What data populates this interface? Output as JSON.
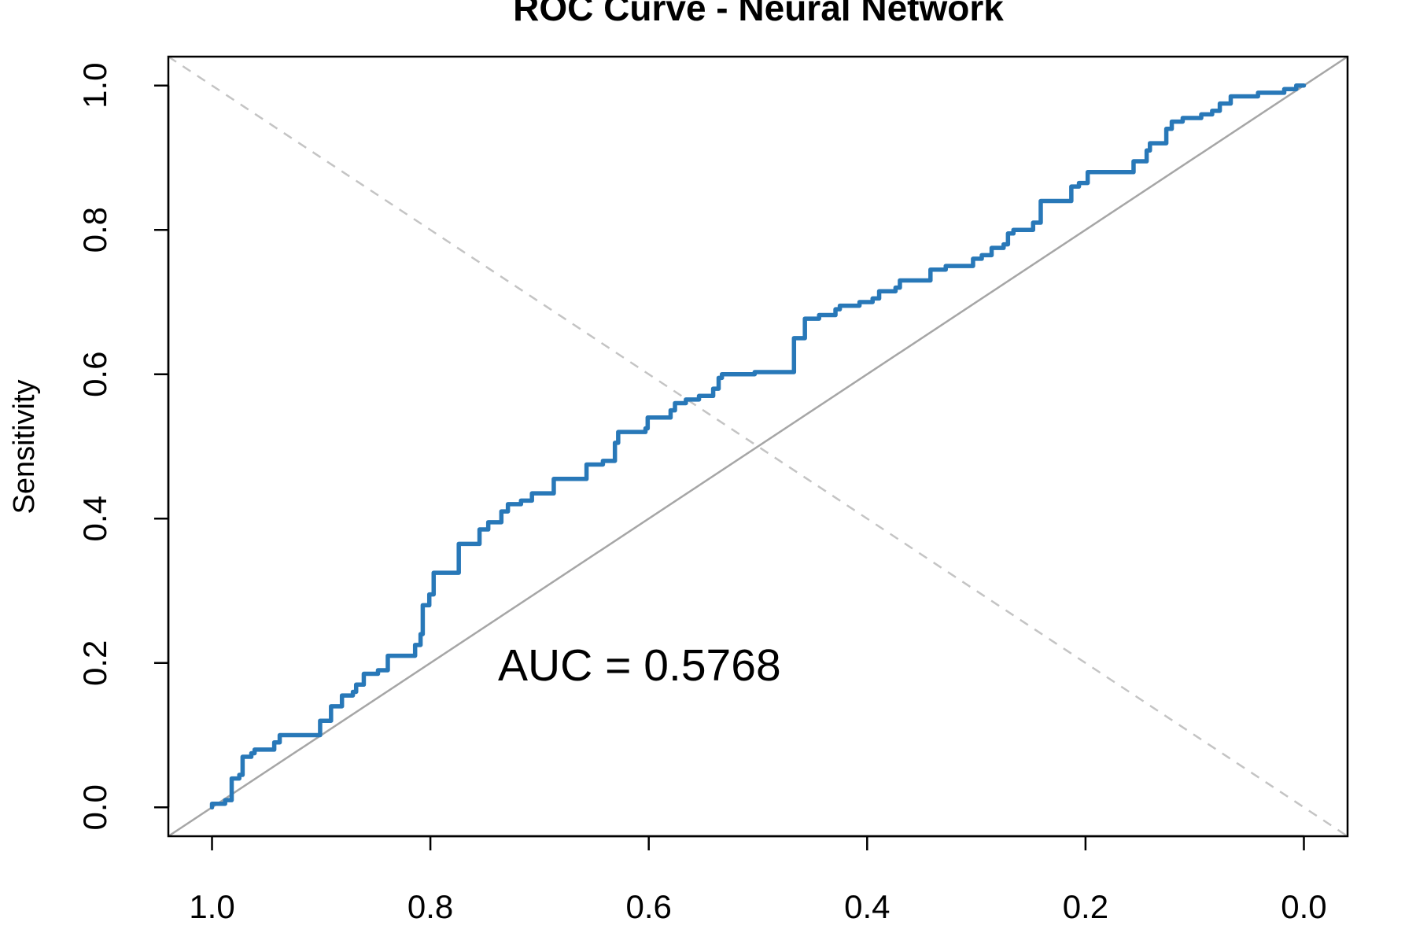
{
  "chart_data": {
    "type": "line",
    "title": "ROC Curve - Neural Network",
    "y_label": "Sensitivity",
    "annotation": "AUC = 0.5768",
    "xlim": [
      1.04,
      -0.04
    ],
    "ylim": [
      -0.04,
      1.04
    ],
    "xticks": [
      {
        "value": 1,
        "label": "1.0"
      },
      0.8,
      0.6,
      0.4,
      0.2,
      {
        "value": 0,
        "label": "0.0"
      }
    ],
    "yticks": [
      {
        "value": 0,
        "label": "0.0"
      },
      0.2,
      0.4,
      0.6,
      0.8,
      {
        "value": 1,
        "label": "1.0"
      }
    ],
    "series": [
      {
        "color": "#2878b8",
        "x": [
          1,
          1,
          0.988,
          0.988,
          0.982,
          0.982,
          0.975,
          0.975,
          0.972,
          0.972,
          0.964,
          0.964,
          0.961,
          0.961,
          0.943,
          0.943,
          0.938,
          0.938,
          0.901,
          0.901,
          0.891,
          0.891,
          0.881,
          0.881,
          0.871,
          0.871,
          0.868,
          0.868,
          0.861,
          0.861,
          0.848,
          0.848,
          0.839,
          0.839,
          0.814,
          0.814,
          0.809,
          0.809,
          0.807,
          0.807,
          0.801,
          0.801,
          0.797,
          0.797,
          0.774,
          0.774,
          0.755,
          0.755,
          0.747,
          0.747,
          0.735,
          0.735,
          0.729,
          0.729,
          0.717,
          0.717,
          0.707,
          0.707,
          0.687,
          0.687,
          0.657,
          0.657,
          0.642,
          0.642,
          0.631,
          0.631,
          0.628,
          0.628,
          0.603,
          0.603,
          0.601,
          0.601,
          0.58,
          0.58,
          0.576,
          0.576,
          0.566,
          0.566,
          0.554,
          0.554,
          0.541,
          0.541,
          0.536,
          0.536,
          0.533,
          0.533,
          0.503,
          0.503,
          0.467,
          0.467,
          0.457,
          0.457,
          0.444,
          0.444,
          0.429,
          0.429,
          0.425,
          0.425,
          0.407,
          0.407,
          0.395,
          0.395,
          0.389,
          0.389,
          0.374,
          0.374,
          0.37,
          0.37,
          0.342,
          0.342,
          0.328,
          0.328,
          0.303,
          0.303,
          0.295,
          0.295,
          0.286,
          0.286,
          0.275,
          0.275,
          0.271,
          0.271,
          0.266,
          0.266,
          0.248,
          0.248,
          0.241,
          0.241,
          0.213,
          0.213,
          0.206,
          0.206,
          0.198,
          0.198,
          0.156,
          0.156,
          0.144,
          0.144,
          0.141,
          0.141,
          0.126,
          0.126,
          0.121,
          0.121,
          0.111,
          0.111,
          0.094,
          0.094,
          0.084,
          0.084,
          0.077,
          0.077,
          0.067,
          0.067,
          0.042,
          0.042,
          0.018,
          0.018,
          0.007,
          0.007,
          0
        ],
        "values": [
          0,
          0.005,
          0.005,
          0.01,
          0.01,
          0.04,
          0.04,
          0.045,
          0.045,
          0.07,
          0.07,
          0.075,
          0.075,
          0.08,
          0.08,
          0.09,
          0.09,
          0.1,
          0.1,
          0.12,
          0.12,
          0.14,
          0.14,
          0.155,
          0.155,
          0.16,
          0.16,
          0.17,
          0.17,
          0.185,
          0.185,
          0.19,
          0.19,
          0.21,
          0.21,
          0.225,
          0.225,
          0.24,
          0.24,
          0.28,
          0.28,
          0.295,
          0.295,
          0.325,
          0.325,
          0.365,
          0.365,
          0.385,
          0.385,
          0.395,
          0.395,
          0.41,
          0.41,
          0.42,
          0.42,
          0.425,
          0.425,
          0.435,
          0.435,
          0.455,
          0.455,
          0.475,
          0.475,
          0.48,
          0.48,
          0.505,
          0.505,
          0.52,
          0.52,
          0.525,
          0.525,
          0.54,
          0.54,
          0.55,
          0.55,
          0.56,
          0.56,
          0.565,
          0.565,
          0.57,
          0.57,
          0.58,
          0.58,
          0.595,
          0.595,
          0.6,
          0.6,
          0.603,
          0.603,
          0.65,
          0.65,
          0.677,
          0.677,
          0.682,
          0.682,
          0.69,
          0.69,
          0.695,
          0.695,
          0.7,
          0.7,
          0.705,
          0.705,
          0.715,
          0.715,
          0.72,
          0.72,
          0.73,
          0.73,
          0.745,
          0.745,
          0.75,
          0.75,
          0.76,
          0.76,
          0.765,
          0.765,
          0.775,
          0.775,
          0.78,
          0.78,
          0.795,
          0.795,
          0.8,
          0.8,
          0.81,
          0.81,
          0.84,
          0.84,
          0.86,
          0.86,
          0.865,
          0.865,
          0.88,
          0.88,
          0.895,
          0.895,
          0.91,
          0.91,
          0.92,
          0.92,
          0.94,
          0.94,
          0.95,
          0.95,
          0.955,
          0.955,
          0.96,
          0.96,
          0.965,
          0.965,
          0.975,
          0.975,
          0.985,
          0.985,
          0.99,
          0.99,
          0.995,
          0.995,
          1,
          1
        ]
      }
    ]
  }
}
